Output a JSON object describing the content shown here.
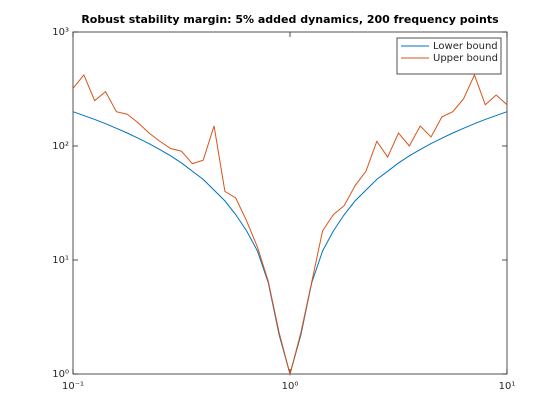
{
  "chart_data": {
    "type": "line",
    "title": "Robust stability margin: 5% added dynamics, 200 frequency points",
    "x": [
      0.1,
      0.1122,
      0.1259,
      0.1413,
      0.1585,
      0.1778,
      0.1995,
      0.2239,
      0.2512,
      0.2818,
      0.3162,
      0.3548,
      0.3981,
      0.4467,
      0.5012,
      0.5623,
      0.631,
      0.7079,
      0.7943,
      0.8913,
      1,
      1.122,
      1.259,
      1.413,
      1.585,
      1.778,
      1.995,
      2.239,
      2.512,
      2.818,
      3.162,
      3.548,
      3.981,
      4.467,
      5.012,
      5.623,
      6.31,
      7.079,
      7.943,
      8.913,
      10
    ],
    "series": [
      {
        "name": "Lower bound",
        "color": "#0072bd",
        "values": [
          200,
          185,
          171,
          157,
          143,
          130,
          117,
          105,
          93,
          82,
          71,
          60,
          51,
          41,
          33,
          25,
          18,
          12,
          6.3,
          2.2,
          1,
          2.2,
          6.3,
          12,
          18,
          25,
          33,
          41,
          51,
          60,
          71,
          82,
          93,
          105,
          117,
          130,
          143,
          157,
          171,
          185,
          200
        ]
      },
      {
        "name": "Upper bound",
        "color": "#d95319",
        "values": [
          320,
          420,
          250,
          300,
          200,
          190,
          160,
          130,
          110,
          95,
          90,
          70,
          75,
          150,
          40,
          35,
          22,
          13,
          6.5,
          2.3,
          1,
          2.3,
          6.4,
          18,
          25,
          30,
          45,
          60,
          110,
          80,
          130,
          100,
          150,
          120,
          180,
          200,
          260,
          420,
          230,
          280,
          230
        ]
      }
    ],
    "xlim": [
      0.1,
      10
    ],
    "ylim": [
      1,
      1000
    ],
    "xscale": "log",
    "yscale": "log",
    "xticks": [
      {
        "value": 0.1,
        "label": "10⁻¹"
      },
      {
        "value": 1,
        "label": "10⁰"
      },
      {
        "value": 10,
        "label": "10¹"
      }
    ],
    "yticks": [
      {
        "value": 1,
        "label": "10⁰"
      },
      {
        "value": 10,
        "label": "10¹"
      },
      {
        "value": 100,
        "label": "10²"
      },
      {
        "value": 1000,
        "label": "10³"
      }
    ],
    "legend": "northeast"
  }
}
